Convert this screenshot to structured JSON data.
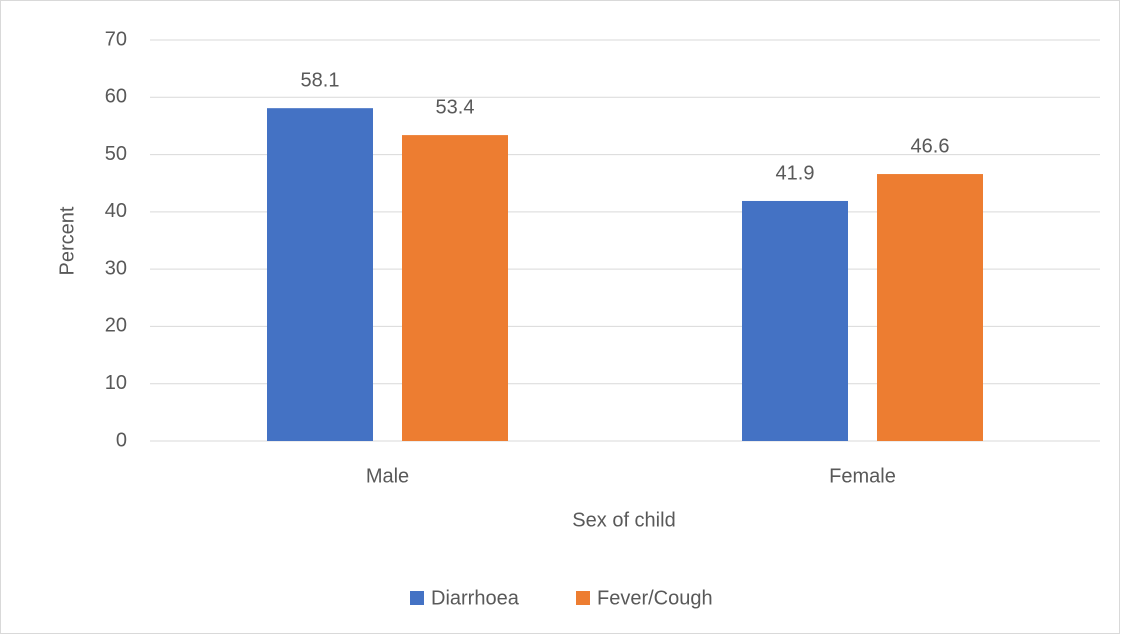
{
  "chart_data": {
    "type": "bar",
    "x_label": "Sex of child",
    "y_label": "Percent",
    "categories": [
      "Male",
      "Female"
    ],
    "series": [
      {
        "name": "Diarrhoea",
        "color": "#4472c4",
        "values": [
          58.1,
          41.9
        ]
      },
      {
        "name": "Fever/Cough",
        "color": "#ed7d31",
        "values": [
          53.4,
          46.6
        ]
      }
    ],
    "ylim": [
      0,
      70
    ],
    "yticks": [
      0,
      10,
      20,
      30,
      40,
      50,
      60,
      70
    ],
    "grid": true,
    "legend": "bottom"
  }
}
